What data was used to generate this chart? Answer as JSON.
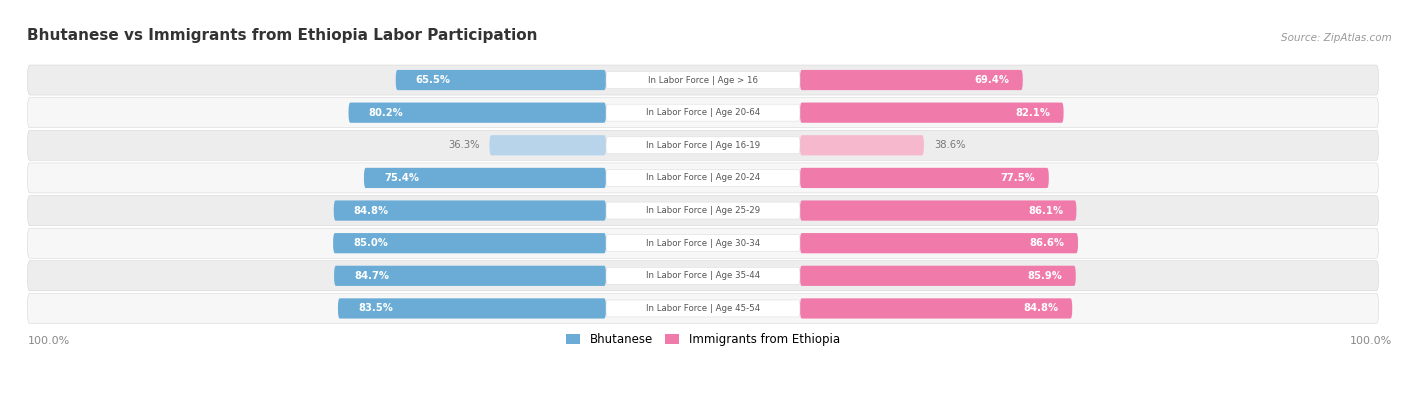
{
  "title": "Bhutanese vs Immigrants from Ethiopia Labor Participation",
  "source": "Source: ZipAtlas.com",
  "categories": [
    "In Labor Force | Age > 16",
    "In Labor Force | Age 20-64",
    "In Labor Force | Age 16-19",
    "In Labor Force | Age 20-24",
    "In Labor Force | Age 25-29",
    "In Labor Force | Age 30-34",
    "In Labor Force | Age 35-44",
    "In Labor Force | Age 45-54"
  ],
  "bhutanese": [
    65.5,
    80.2,
    36.3,
    75.4,
    84.8,
    85.0,
    84.7,
    83.5
  ],
  "ethiopia": [
    69.4,
    82.1,
    38.6,
    77.5,
    86.1,
    86.6,
    85.9,
    84.8
  ],
  "blue_dark": "#6aacd5",
  "blue_light": "#b8d4ea",
  "pink_dark": "#f07aaa",
  "pink_light": "#f5b8cc",
  "row_bg_even": "#ededee",
  "row_bg_odd": "#f7f7f8",
  "center_label_color": "#555555",
  "title_color": "#333333",
  "legend_blue": "Bhutanese",
  "legend_pink": "Immigrants from Ethiopia",
  "low_label_color": "#777777",
  "axis_label_color": "#888888"
}
